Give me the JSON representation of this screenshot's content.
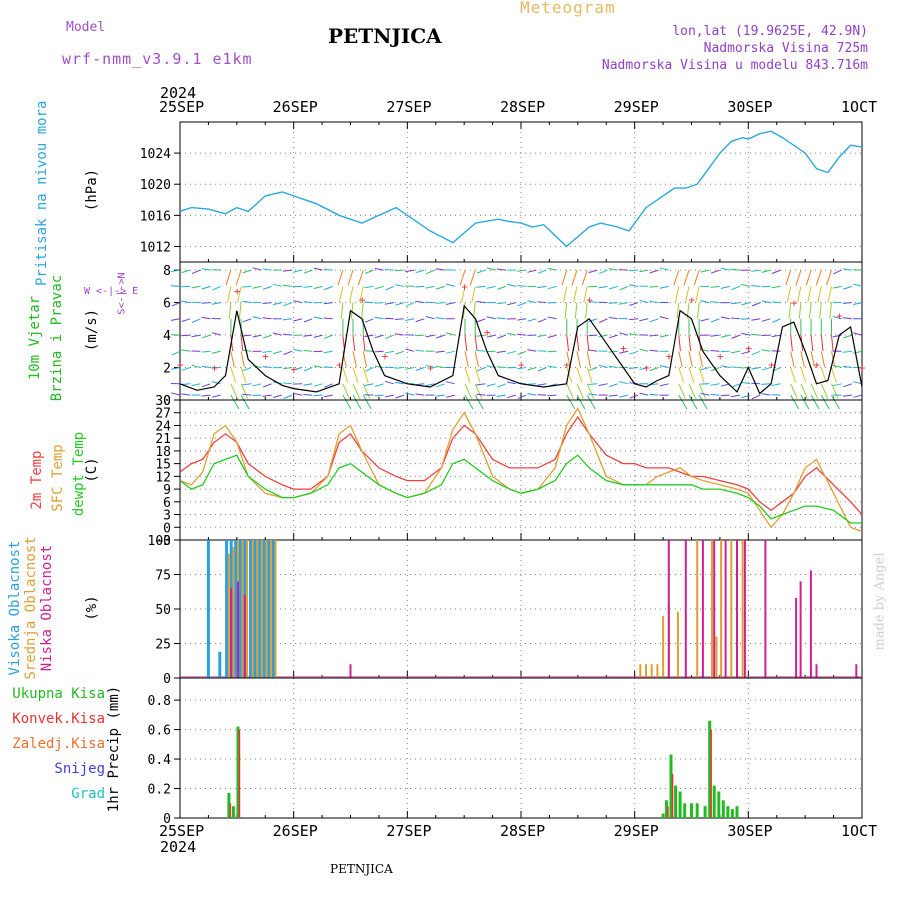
{
  "header": {
    "model_label": "Model",
    "model_name": "wrf-nmm_v3.9.1 e1km",
    "title": "Meteogram",
    "station": "PETNJICA",
    "coords": "lon,lat (19.9625E, 42.9N)",
    "elevation": "Nadmorska Visina 725m",
    "model_elevation": "Nadmorska Visina u modelu 843.716m",
    "colors": {
      "model": "#a050c8",
      "title": "#e8b860",
      "info": "#9040c8"
    }
  },
  "footer": {
    "station": "PETNJICA",
    "credit": "made by Angel"
  },
  "x_axis": {
    "year": "2024",
    "labels": [
      "25SEP",
      "26SEP",
      "27SEP",
      "28SEP",
      "29SEP",
      "30SEP",
      "1OCT"
    ]
  },
  "panel_labels": {
    "pressure": {
      "name": "Pritisak na nivou mora",
      "unit": "(hPa)",
      "color": "#2aa8e0"
    },
    "wind": {
      "line1": "10m Vjetar",
      "line2": "Brzina i Pravac",
      "unit": "(m/s)",
      "color": "#22bb22",
      "compass": "W <-|-> E",
      "compass_v": "S<-|->N",
      "compass_color": "#a040c8"
    },
    "temp": {
      "t2m": "2m Temp",
      "sfc": "SFC Temp",
      "dew": "dewpt Temp",
      "unit": "(C)",
      "colors": {
        "t2m": "#f04040",
        "sfc": "#e0a030",
        "dew": "#22cc22"
      }
    },
    "cloud": {
      "high": "Visoka Oblacnost",
      "mid": "Srednja Oblacnost",
      "low": "Niska Oblacnost",
      "unit": "(%)",
      "colors": {
        "high": "#2aa0e0",
        "mid": "#e0a030",
        "low": "#d02090"
      }
    },
    "precip": {
      "unit": "1hr Precip (mm)",
      "legend": [
        {
          "label": "Ukupna Kisa",
          "color": "#22bb22"
        },
        {
          "label": "Konvek.Kisa",
          "color": "#f03030"
        },
        {
          "label": "Zaledj.Kisa",
          "color": "#f07030"
        },
        {
          "label": "Snijeg",
          "color": "#4040e0"
        },
        {
          "label": "Grad",
          "color": "#20c0c0"
        }
      ]
    }
  },
  "chart_data": [
    {
      "type": "line",
      "title": "",
      "ylabel": "Pritisak na nivou mora (hPa)",
      "ylim": [
        1010,
        1028
      ],
      "yticks": [
        1012,
        1016,
        1020,
        1024
      ],
      "x": [
        0,
        0.1,
        0.25,
        0.4,
        0.5,
        0.6,
        0.75,
        0.9,
        1.0,
        1.1,
        1.2,
        1.4,
        1.6,
        1.75,
        1.9,
        2.0,
        2.2,
        2.4,
        2.6,
        2.8,
        2.9,
        3.0,
        3.1,
        3.2,
        3.4,
        3.6,
        3.7,
        3.85,
        3.95,
        4.0,
        4.1,
        4.2,
        4.3,
        4.35,
        4.45,
        4.55,
        4.65,
        4.75,
        4.85,
        4.95,
        5.0,
        5.1,
        5.2,
        5.3,
        5.4,
        5.5,
        5.6,
        5.7,
        5.8,
        5.9,
        6.0
      ],
      "series": [
        {
          "color": "#2aa8e0",
          "values": [
            1016.5,
            1017.0,
            1016.8,
            1016.2,
            1017.0,
            1016.5,
            1018.5,
            1019.0,
            1018.5,
            1018.0,
            1017.5,
            1016.0,
            1015.0,
            1016.0,
            1017.0,
            1016.0,
            1014.0,
            1012.5,
            1015.0,
            1015.5,
            1015.2,
            1015.0,
            1014.5,
            1014.8,
            1012.0,
            1014.5,
            1015.0,
            1014.5,
            1014.0,
            1015.0,
            1017.0,
            1018.0,
            1019.0,
            1019.5,
            1019.5,
            1020.0,
            1022.0,
            1024.0,
            1025.5,
            1026.0,
            1025.8,
            1026.5,
            1026.8,
            1026.0,
            1025.0,
            1024.0,
            1022.0,
            1021.5,
            1023.5,
            1025.0,
            1024.8
          ]
        }
      ]
    },
    {
      "type": "line",
      "title": "",
      "ylabel": "10m Vjetar Brzina i Pravac (m/s)",
      "ylim": [
        0,
        8.5
      ],
      "yticks": [
        0,
        2,
        4,
        6,
        8
      ],
      "x": [
        0,
        0.15,
        0.3,
        0.4,
        0.5,
        0.6,
        0.75,
        0.9,
        1.0,
        1.2,
        1.4,
        1.5,
        1.6,
        1.7,
        1.8,
        2.0,
        2.2,
        2.4,
        2.5,
        2.6,
        2.7,
        2.8,
        3.0,
        3.2,
        3.4,
        3.5,
        3.6,
        3.75,
        3.9,
        4.0,
        4.1,
        4.2,
        4.3,
        4.4,
        4.5,
        4.6,
        4.75,
        4.9,
        5.0,
        5.1,
        5.2,
        5.3,
        5.4,
        5.5,
        5.6,
        5.7,
        5.8,
        5.9,
        6.0
      ],
      "series": [
        {
          "name": "speed",
          "color": "#000000",
          "values": [
            1.0,
            0.6,
            0.8,
            1.5,
            5.5,
            2.5,
            1.5,
            0.9,
            0.7,
            0.5,
            1.0,
            5.5,
            5.0,
            3.0,
            1.5,
            1.0,
            0.8,
            1.5,
            5.8,
            5.0,
            3.0,
            1.5,
            1.0,
            0.8,
            1.0,
            4.5,
            5.0,
            3.5,
            2.0,
            1.0,
            0.8,
            1.2,
            1.5,
            5.5,
            5.0,
            3.0,
            1.5,
            0.5,
            2.0,
            0.4,
            1.0,
            4.5,
            4.8,
            3.0,
            1.0,
            1.2,
            4.0,
            4.5,
            0.8
          ]
        }
      ]
    },
    {
      "type": "line",
      "title": "",
      "ylabel": "Temp (C)",
      "ylim": [
        -3,
        30
      ],
      "yticks": [
        -3,
        0,
        3,
        6,
        9,
        12,
        15,
        18,
        21,
        24,
        27,
        30
      ],
      "x": [
        0,
        0.1,
        0.2,
        0.3,
        0.4,
        0.5,
        0.6,
        0.75,
        0.9,
        1.0,
        1.15,
        1.3,
        1.4,
        1.5,
        1.6,
        1.75,
        1.9,
        2.0,
        2.15,
        2.3,
        2.4,
        2.5,
        2.6,
        2.75,
        2.9,
        3.0,
        3.15,
        3.3,
        3.4,
        3.5,
        3.6,
        3.75,
        3.9,
        4.0,
        4.1,
        4.2,
        4.3,
        4.4,
        4.5,
        4.6,
        4.75,
        4.9,
        5.0,
        5.1,
        5.2,
        5.3,
        5.4,
        5.5,
        5.6,
        5.75,
        5.9,
        6.0
      ],
      "series": [
        {
          "name": "2m Temp",
          "color": "#f04040",
          "values": [
            13,
            15,
            16,
            20,
            22,
            20,
            15,
            12,
            10,
            9,
            9,
            12,
            20,
            22,
            18,
            14,
            12,
            11,
            11,
            14,
            21,
            24,
            22,
            16,
            14,
            14,
            14,
            16,
            22,
            26,
            22,
            17,
            15,
            15,
            14,
            14,
            14,
            13,
            12,
            12,
            11,
            10,
            9,
            6,
            4,
            6,
            8,
            12,
            14,
            10,
            6,
            3
          ]
        },
        {
          "name": "SFC Temp",
          "color": "#e0a030",
          "values": [
            11,
            10,
            13,
            22,
            24,
            20,
            12,
            8,
            7,
            7,
            8,
            12,
            22,
            24,
            18,
            10,
            8,
            7,
            8,
            14,
            23,
            27,
            22,
            12,
            9,
            8,
            9,
            14,
            24,
            28,
            22,
            12,
            10,
            10,
            10,
            12,
            13,
            14,
            12,
            11,
            10,
            9,
            8,
            4,
            0,
            3,
            8,
            14,
            16,
            8,
            0,
            -1
          ]
        },
        {
          "name": "dewpt Temp",
          "color": "#22cc22",
          "values": [
            11,
            9,
            10,
            15,
            16,
            17,
            12,
            9,
            7,
            7,
            8,
            10,
            14,
            15,
            13,
            10,
            8,
            7,
            8,
            10,
            15,
            16,
            14,
            11,
            9,
            8,
            9,
            11,
            15,
            17,
            14,
            11,
            10,
            10,
            10,
            10,
            10,
            10,
            10,
            9,
            9,
            8,
            7,
            5,
            2,
            3,
            4,
            5,
            5,
            4,
            1,
            1
          ]
        }
      ]
    },
    {
      "type": "bar",
      "title": "",
      "ylabel": "Oblacnost (%)",
      "ylim": [
        0,
        100
      ],
      "yticks": [
        0,
        25,
        50,
        75,
        100
      ],
      "series": [
        {
          "name": "Visoka Oblacnost",
          "color": "#2aa0e0",
          "bars": [
            [
              0.25,
              100
            ],
            [
              0.35,
              19
            ],
            [
              0.41,
              100
            ],
            [
              0.45,
              100
            ],
            [
              0.49,
              100
            ],
            [
              0.53,
              100
            ],
            [
              0.57,
              100
            ],
            [
              0.62,
              100
            ],
            [
              0.66,
              100
            ],
            [
              0.7,
              100
            ],
            [
              0.74,
              100
            ],
            [
              0.78,
              100
            ],
            [
              0.82,
              100
            ]
          ]
        },
        {
          "name": "Srednja Oblacnost",
          "color": "#e0a030",
          "bars": [
            [
              0.43,
              90
            ],
            [
              0.47,
              95
            ],
            [
              0.51,
              100
            ],
            [
              0.55,
              100
            ],
            [
              0.59,
              100
            ],
            [
              0.64,
              100
            ],
            [
              0.68,
              100
            ],
            [
              0.72,
              100
            ],
            [
              0.76,
              100
            ],
            [
              0.8,
              100
            ],
            [
              0.84,
              100
            ],
            [
              4.05,
              10
            ],
            [
              4.1,
              10
            ],
            [
              4.15,
              10
            ],
            [
              4.2,
              10
            ],
            [
              4.25,
              45
            ],
            [
              4.3,
              55
            ],
            [
              4.38,
              48
            ],
            [
              4.55,
              100
            ],
            [
              4.68,
              100
            ],
            [
              4.72,
              30
            ],
            [
              4.76,
              100
            ],
            [
              4.85,
              100
            ],
            [
              4.95,
              100
            ]
          ]
        },
        {
          "name": "Niska Oblacnost",
          "color": "#d02090",
          "bars": [
            [
              0.45,
              65
            ],
            [
              0.51,
              70
            ],
            [
              0.57,
              60
            ],
            [
              1.5,
              10
            ],
            [
              4.3,
              100
            ],
            [
              4.45,
              100
            ],
            [
              4.6,
              100
            ],
            [
              4.7,
              100
            ],
            [
              4.8,
              100
            ],
            [
              4.9,
              100
            ],
            [
              4.97,
              100
            ],
            [
              5.15,
              100
            ],
            [
              5.42,
              58
            ],
            [
              5.46,
              70
            ],
            [
              5.55,
              78
            ],
            [
              5.6,
              10
            ],
            [
              5.95,
              10
            ]
          ]
        }
      ]
    },
    {
      "type": "bar",
      "title": "",
      "ylabel": "1hr Precip (mm)",
      "ylim": [
        0,
        0.95
      ],
      "yticks": [
        0,
        0.2,
        0.4,
        0.6,
        0.8
      ],
      "series": [
        {
          "name": "Ukupna Kisa",
          "color": "#22bb22",
          "bars": [
            [
              0.43,
              0.17
            ],
            [
              0.47,
              0.08
            ],
            [
              0.51,
              0.62
            ],
            [
              4.25,
              0.03
            ],
            [
              4.28,
              0.12
            ],
            [
              4.32,
              0.43
            ],
            [
              4.36,
              0.22
            ],
            [
              4.4,
              0.18
            ],
            [
              4.44,
              0.1
            ],
            [
              4.5,
              0.1
            ],
            [
              4.55,
              0.1
            ],
            [
              4.62,
              0.08
            ],
            [
              4.66,
              0.66
            ],
            [
              4.7,
              0.22
            ],
            [
              4.74,
              0.18
            ],
            [
              4.78,
              0.12
            ],
            [
              4.82,
              0.08
            ],
            [
              4.86,
              0.06
            ],
            [
              4.9,
              0.08
            ]
          ]
        },
        {
          "name": "Konvek.Kisa",
          "color": "#f03030",
          "bars": [
            [
              0.43,
              0.1
            ],
            [
              0.51,
              0.6
            ],
            [
              4.28,
              0.08
            ],
            [
              4.32,
              0.3
            ],
            [
              4.66,
              0.6
            ]
          ]
        }
      ]
    }
  ]
}
